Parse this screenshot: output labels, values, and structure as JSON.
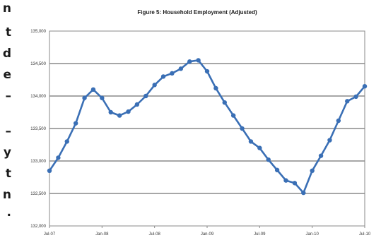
{
  "left_fragments": [
    "n",
    "t",
    "d",
    "e",
    "–",
    "–",
    "y",
    "t",
    "n",
    "."
  ],
  "chart_data": {
    "type": "line",
    "title": "Figure 5: Household Employment (Adjusted)",
    "xlabel": "",
    "ylabel": "",
    "x_ticks": [
      "Jul-07",
      "Jan-08",
      "Jul-08",
      "Jan-09",
      "Jul-09",
      "Jan-10",
      "Jul-10"
    ],
    "y_ticks": [
      "132,000",
      "132,500",
      "133,000",
      "133,500",
      "134,000",
      "134,500",
      "135,000"
    ],
    "ylim": [
      132000,
      135000
    ],
    "grid": true,
    "color": "#3a6fb5",
    "x": [
      "Jul-07",
      "Aug-07",
      "Sep-07",
      "Oct-07",
      "Nov-07",
      "Dec-07",
      "Jan-08",
      "Feb-08",
      "Mar-08",
      "Apr-08",
      "May-08",
      "Jun-08",
      "Jul-08",
      "Aug-08",
      "Sep-08",
      "Oct-08",
      "Nov-08",
      "Dec-08",
      "Jan-09",
      "Feb-09",
      "Mar-09",
      "Apr-09",
      "May-09",
      "Jun-09",
      "Jul-09",
      "Aug-09",
      "Sep-09",
      "Oct-09",
      "Nov-09",
      "Dec-09",
      "Jan-10",
      "Feb-10",
      "Mar-10",
      "Apr-10",
      "May-10",
      "Jun-10",
      "Jul-10"
    ],
    "values": [
      132850,
      133050,
      133300,
      133580,
      133970,
      134100,
      133970,
      133750,
      133700,
      133760,
      133870,
      134000,
      134170,
      134300,
      134350,
      134420,
      134530,
      134550,
      134380,
      134120,
      133900,
      133700,
      133500,
      133300,
      133200,
      133020,
      132860,
      132700,
      132660,
      132510,
      132850,
      133080,
      133320,
      133620,
      133920,
      133990,
      134150
    ]
  }
}
